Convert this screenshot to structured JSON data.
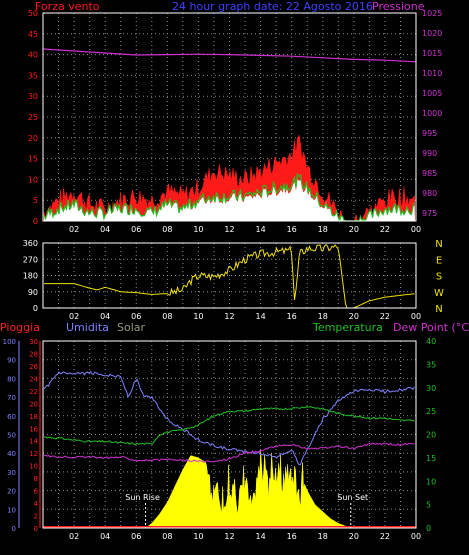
{
  "header": {
    "left_label": "Forza vento",
    "title": "24 hour graph date: 22 Agosto 2016",
    "right_label": "Pressione"
  },
  "colors": {
    "background": "#000000",
    "frame": "#ffffff",
    "grid": "#8a8a8a",
    "wind_gust": "#ff1a1a",
    "wind_avg": "#20c020",
    "wind_white": "#ffffff",
    "pressure": "#d030d0",
    "direction": "#f0e000",
    "humidity": "#8080ff",
    "temperature": "#20c020",
    "dew_point": "#d030d0",
    "solar": "#ffff00",
    "rain": "#ff2020",
    "title": "#4040ff",
    "solar_label": "#9a9a7a"
  },
  "chart_data": [
    {
      "type": "area",
      "name_panel": "wind-pressure",
      "title": "24 hour graph date: 22 Agosto 2016",
      "ylabel_left": "Forza vento",
      "ylabel_right": "Pressione",
      "x_ticks": [
        "02",
        "04",
        "06",
        "08",
        "10",
        "12",
        "14",
        "16",
        "18",
        "20",
        "22",
        "00"
      ],
      "y_left_ticks": [
        0,
        5,
        10,
        15,
        20,
        25,
        30,
        35,
        40,
        45,
        50
      ],
      "y_left_range": [
        0,
        50
      ],
      "y_right_ticks": [
        975,
        980,
        985,
        990,
        995,
        1000,
        1005,
        1010,
        1015,
        1020,
        1025
      ],
      "y_right_range": [
        973,
        1025
      ],
      "x_range": [
        0,
        24
      ],
      "grid": true,
      "series": [
        {
          "key": "gust",
          "color": "#ff1a1a",
          "x": [
            0,
            1,
            2,
            3,
            4,
            5,
            6,
            7,
            8,
            9,
            10,
            11,
            12,
            13,
            14,
            15,
            16,
            16.5,
            17,
            18,
            19,
            19.5,
            20,
            21,
            22,
            23,
            24
          ],
          "values": [
            2,
            5,
            7,
            4,
            3,
            5,
            6,
            5,
            7,
            6,
            8,
            12,
            11,
            10,
            12,
            14,
            16,
            19,
            13,
            7,
            2,
            0,
            0,
            2,
            5,
            6,
            5
          ]
        },
        {
          "key": "avg",
          "color": "#20c020",
          "x": [
            0,
            1,
            2,
            3,
            4,
            5,
            6,
            7,
            8,
            9,
            10,
            11,
            12,
            13,
            14,
            15,
            16,
            16.5,
            17,
            18,
            19,
            19.5,
            20,
            21,
            22,
            23,
            24
          ],
          "values": [
            1,
            3,
            4,
            2,
            2,
            3,
            3,
            2,
            4,
            3,
            5,
            6,
            6,
            6,
            7,
            8,
            9,
            10,
            8,
            4,
            1,
            0,
            0,
            1,
            3,
            3,
            3
          ]
        },
        {
          "key": "pressure",
          "axis": "right",
          "color": "#d030d0",
          "x": [
            0,
            2,
            4,
            6,
            8,
            10,
            12,
            14,
            16,
            18,
            20,
            22,
            24
          ],
          "values": [
            1016,
            1015.5,
            1015,
            1014.5,
            1014.6,
            1014.7,
            1014.6,
            1014.4,
            1014.2,
            1013.8,
            1013.4,
            1013.2,
            1012.8
          ]
        }
      ]
    },
    {
      "type": "line",
      "name_panel": "wind-direction",
      "x_range": [
        0,
        24
      ],
      "y_range": [
        0,
        360
      ],
      "y_left_ticks": [
        0,
        90,
        180,
        270,
        360
      ],
      "y_right_labels": [
        "N",
        "W",
        "S",
        "E",
        "N"
      ],
      "x_ticks": [
        "02",
        "04",
        "06",
        "08",
        "10",
        "12",
        "14",
        "16",
        "18",
        "20",
        "22",
        "00"
      ],
      "grid": true,
      "series": [
        {
          "key": "direction",
          "color": "#f0e000",
          "x": [
            0,
            1,
            2,
            3,
            3.5,
            4,
            5,
            6,
            7,
            8,
            9,
            9.5,
            10,
            11,
            12,
            13,
            14,
            15,
            16,
            16.2,
            16.5,
            17,
            18,
            19,
            19.5,
            20,
            21,
            22,
            23,
            24
          ],
          "values": [
            135,
            135,
            135,
            110,
            100,
            115,
            90,
            85,
            75,
            80,
            100,
            150,
            180,
            175,
            210,
            270,
            300,
            310,
            320,
            20,
            300,
            330,
            330,
            340,
            0,
            0,
            40,
            60,
            70,
            80
          ]
        }
      ]
    },
    {
      "type": "area",
      "name_panel": "humidity-temp",
      "labels": {
        "rain": "Pioggia",
        "humidity": "Umidita",
        "solar": "Solar",
        "temperature": "Temperatura",
        "dew_point": "Dew Point (°C)",
        "sun_rise": "Sun Rise",
        "sun_set": "Sun Set"
      },
      "x_ticks": [
        "02",
        "04",
        "06",
        "08",
        "10",
        "12",
        "14",
        "16",
        "18",
        "20",
        "22",
        "00"
      ],
      "x_range": [
        0,
        24
      ],
      "humidity_ticks": [
        0,
        10,
        20,
        30,
        40,
        50,
        60,
        70,
        80,
        90,
        100
      ],
      "rain_ticks": [
        0,
        2,
        4,
        6,
        8,
        10,
        12,
        14,
        16,
        18,
        20,
        22,
        24,
        26,
        28,
        30
      ],
      "temp_ticks": [
        0,
        5,
        10,
        15,
        20,
        25,
        30,
        35,
        40
      ],
      "humidity_range": [
        0,
        100
      ],
      "temp_range": [
        0,
        40
      ],
      "grid": true,
      "sun_rise_x": 6.6,
      "sun_set_x": 19.8,
      "series": [
        {
          "key": "humidity",
          "axis": "humidity",
          "color": "#8080ff",
          "x": [
            0,
            1,
            2,
            3,
            4,
            5,
            5.5,
            6,
            6.5,
            7,
            8,
            9,
            10,
            11,
            12,
            13,
            14,
            15,
            16,
            16.5,
            17,
            18,
            19,
            20,
            21,
            22,
            23,
            24
          ],
          "values": [
            73,
            83,
            82,
            83,
            82,
            81,
            70,
            80,
            70,
            70,
            58,
            53,
            47,
            44,
            42,
            41,
            40,
            38,
            42,
            33,
            42,
            58,
            68,
            73,
            74,
            73,
            74,
            75
          ]
        },
        {
          "key": "temperature",
          "axis": "temp",
          "color": "#20c020",
          "x": [
            0,
            1,
            2,
            3,
            4,
            5,
            6,
            7,
            7.5,
            8,
            9,
            10,
            11,
            12,
            13,
            14,
            15,
            16,
            17,
            18,
            19,
            20,
            21,
            22,
            23,
            24
          ],
          "values": [
            19.5,
            19.2,
            18.8,
            18.5,
            18.5,
            18.2,
            18,
            18,
            20,
            20.5,
            21,
            22,
            24,
            25,
            25,
            25.5,
            25.5,
            25.5,
            26,
            25.5,
            24.5,
            24,
            23.5,
            23.5,
            23,
            23
          ]
        },
        {
          "key": "dew_point",
          "axis": "temp",
          "color": "#d030d0",
          "x": [
            0,
            1,
            2,
            3,
            4,
            5,
            6,
            7,
            8,
            9,
            10,
            11,
            12,
            13,
            14,
            15,
            16,
            17,
            18,
            19,
            20,
            21,
            22,
            23,
            24
          ],
          "values": [
            15.5,
            15.2,
            15.2,
            15.2,
            15,
            15.2,
            14.5,
            14.5,
            14.6,
            14.5,
            14.3,
            14.2,
            14.8,
            16,
            16.5,
            17.5,
            17.8,
            17,
            17,
            17.5,
            17,
            18,
            18,
            17.8,
            18
          ]
        },
        {
          "key": "solar",
          "axis": "temp",
          "color": "#ffff00",
          "x": [
            6.6,
            7,
            7.5,
            8,
            8.5,
            9,
            9.5,
            10,
            10.5,
            11,
            11.5,
            12,
            12.5,
            13,
            13.5,
            14,
            14.5,
            15,
            15.5,
            16,
            16.5,
            17,
            17.5,
            18,
            18.5,
            19,
            19.8
          ],
          "values": [
            0,
            1,
            3,
            5.5,
            9,
            12.5,
            15.5,
            15,
            14,
            11,
            9,
            12,
            9,
            15,
            10,
            17,
            11,
            16,
            13,
            16,
            12,
            8,
            5,
            3.5,
            2,
            1,
            0
          ]
        },
        {
          "key": "rain",
          "axis": "humidity",
          "color": "#ff2020",
          "x": [
            0,
            24
          ],
          "values": [
            0.4,
            0.4
          ]
        }
      ]
    }
  ]
}
